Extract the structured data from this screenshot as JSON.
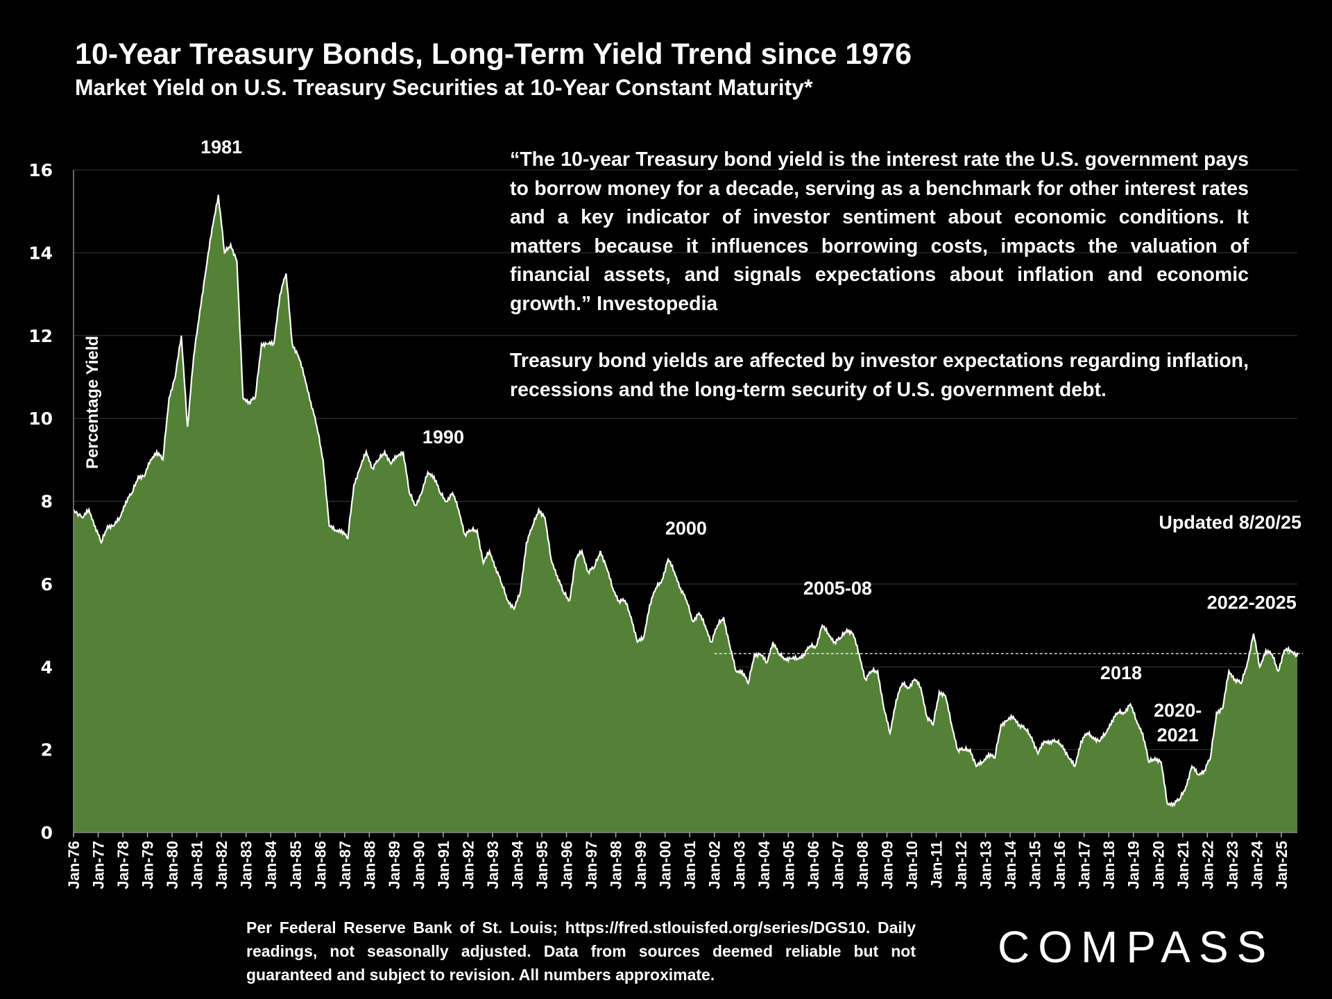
{
  "title": "10-Year Treasury Bonds, Long-Term Yield Trend since 1976",
  "subtitle": "Market Yield on U.S. Treasury Securities at 10-Year Constant Maturity*",
  "quote": {
    "p1": "“The 10-year Treasury bond yield is the interest rate the U.S. government pays to borrow money for a decade, serving as a benchmark for other interest rates and a key indicator of investor sentiment about economic conditions. It matters because it influences borrowing costs, impacts the valuation of financial assets, and signals expectations about inflation and economic growth.” Investopedia",
    "p2": "Treasury bond yields are affected by investor expectations regarding inflation, recessions and the long-term security of U.S. government debt."
  },
  "updated": "Updated 8/20/25",
  "footer": "Per Federal Reserve Bank of St. Louis; https://fred.stlouisfed.org/series/DGS10. Daily readings, not seasonally adjusted. Data from sources deemed reliable but not guaranteed and subject to revision. All numbers approximate.",
  "logo": "COMPASS",
  "colors": {
    "fill": "#538135",
    "line": "#ffffff",
    "grid": "#3a3a3a"
  },
  "chart_data": {
    "type": "area",
    "title": "10-Year Treasury Bonds, Long-Term Yield Trend since 1976",
    "ylabel": "Percentage Yield",
    "xlabel": "",
    "ylim": [
      0,
      16
    ],
    "yticks": [
      0,
      2,
      4,
      6,
      8,
      10,
      12,
      14,
      16
    ],
    "xlim": [
      1976,
      2025.65
    ],
    "xtick_labels": [
      "Jan-76",
      "Jan-77",
      "Jan-78",
      "Jan-79",
      "Jan-80",
      "Jan-81",
      "Jan-82",
      "Jan-83",
      "Jan-84",
      "Jan-85",
      "Jan-86",
      "Jan-87",
      "Jan-88",
      "Jan-89",
      "Jan-90",
      "Jan-91",
      "Jan-92",
      "Jan-93",
      "Jan-94",
      "Jan-95",
      "Jan-96",
      "Jan-97",
      "Jan-98",
      "Jan-99",
      "Jan-00",
      "Jan-01",
      "Jan-02",
      "Jan-03",
      "Jan-04",
      "Jan-05",
      "Jan-06",
      "Jan-07",
      "Jan-08",
      "Jan-09",
      "Jan-10",
      "Jan-11",
      "Jan-12",
      "Jan-13",
      "Jan-14",
      "Jan-15",
      "Jan-16",
      "Jan-17",
      "Jan-18",
      "Jan-19",
      "Jan-20",
      "Jan-21",
      "Jan-22",
      "Jan-23",
      "Jan-24",
      "Jan-25"
    ],
    "grid": true,
    "reference_line": {
      "value": 4.32,
      "from": 2002,
      "style": "dashed"
    },
    "series_quarterly_start": 1976,
    "values": [
      7.8,
      7.6,
      7.8,
      7.4,
      7.0,
      7.4,
      7.4,
      7.6,
      8.0,
      8.2,
      8.6,
      8.6,
      9.0,
      9.2,
      9.0,
      10.5,
      11.0,
      12.0,
      9.8,
      11.5,
      12.6,
      13.6,
      14.6,
      15.4,
      14.0,
      14.2,
      13.8,
      10.5,
      10.4,
      10.5,
      11.8,
      11.8,
      11.8,
      13.0,
      13.5,
      11.8,
      11.5,
      11.0,
      10.4,
      9.8,
      9.0,
      7.4,
      7.3,
      7.3,
      7.1,
      8.4,
      8.8,
      9.2,
      8.8,
      9.0,
      9.2,
      8.9,
      9.1,
      9.2,
      8.2,
      7.9,
      8.2,
      8.7,
      8.6,
      8.2,
      8.0,
      8.2,
      7.8,
      7.2,
      7.3,
      7.3,
      6.5,
      6.8,
      6.4,
      6.0,
      5.6,
      5.4,
      5.8,
      7.0,
      7.4,
      7.8,
      7.6,
      6.6,
      6.2,
      5.8,
      5.6,
      6.6,
      6.8,
      6.3,
      6.4,
      6.8,
      6.4,
      5.9,
      5.6,
      5.6,
      5.2,
      4.6,
      4.7,
      5.5,
      5.9,
      6.1,
      6.6,
      6.3,
      5.9,
      5.6,
      5.1,
      5.3,
      5.0,
      4.6,
      5.0,
      5.2,
      4.5,
      3.9,
      3.9,
      3.6,
      4.3,
      4.3,
      4.1,
      4.6,
      4.3,
      4.2,
      4.2,
      4.2,
      4.3,
      4.5,
      4.5,
      5.0,
      4.8,
      4.6,
      4.7,
      4.9,
      4.8,
      4.3,
      3.7,
      3.9,
      3.9,
      3.0,
      2.4,
      3.2,
      3.6,
      3.5,
      3.7,
      3.5,
      2.8,
      2.6,
      3.4,
      3.3,
      2.6,
      2.0,
      2.0,
      2.0,
      1.6,
      1.7,
      1.9,
      1.8,
      2.6,
      2.7,
      2.8,
      2.6,
      2.5,
      2.3,
      1.9,
      2.2,
      2.2,
      2.2,
      2.1,
      1.8,
      1.6,
      2.2,
      2.4,
      2.3,
      2.2,
      2.4,
      2.7,
      2.9,
      2.9,
      3.1,
      2.7,
      2.4,
      1.7,
      1.8,
      1.7,
      0.7,
      0.7,
      0.8,
      1.1,
      1.6,
      1.4,
      1.5,
      1.8,
      2.9,
      3.0,
      3.9,
      3.7,
      3.6,
      4.1,
      4.8,
      4.0,
      4.4,
      4.3,
      3.9,
      4.4,
      4.4,
      4.3
    ],
    "annotations": [
      {
        "text": "1981",
        "x": 1982.0,
        "y": 16.4
      },
      {
        "text": "1990",
        "x": 1991.0,
        "y": 9.4
      },
      {
        "text": "2000",
        "x": 2000.85,
        "y": 7.2
      },
      {
        "text": "2005-08",
        "x": 2007.0,
        "y": 5.75
      },
      {
        "text": "2018",
        "x": 2018.5,
        "y": 3.7
      },
      {
        "text": "2020-",
        "x": 2020.8,
        "y": 2.8
      },
      {
        "text": "2021",
        "x": 2020.8,
        "y": 2.2
      },
      {
        "text": "2022-2025",
        "x": 2023.8,
        "y": 5.4
      }
    ]
  }
}
